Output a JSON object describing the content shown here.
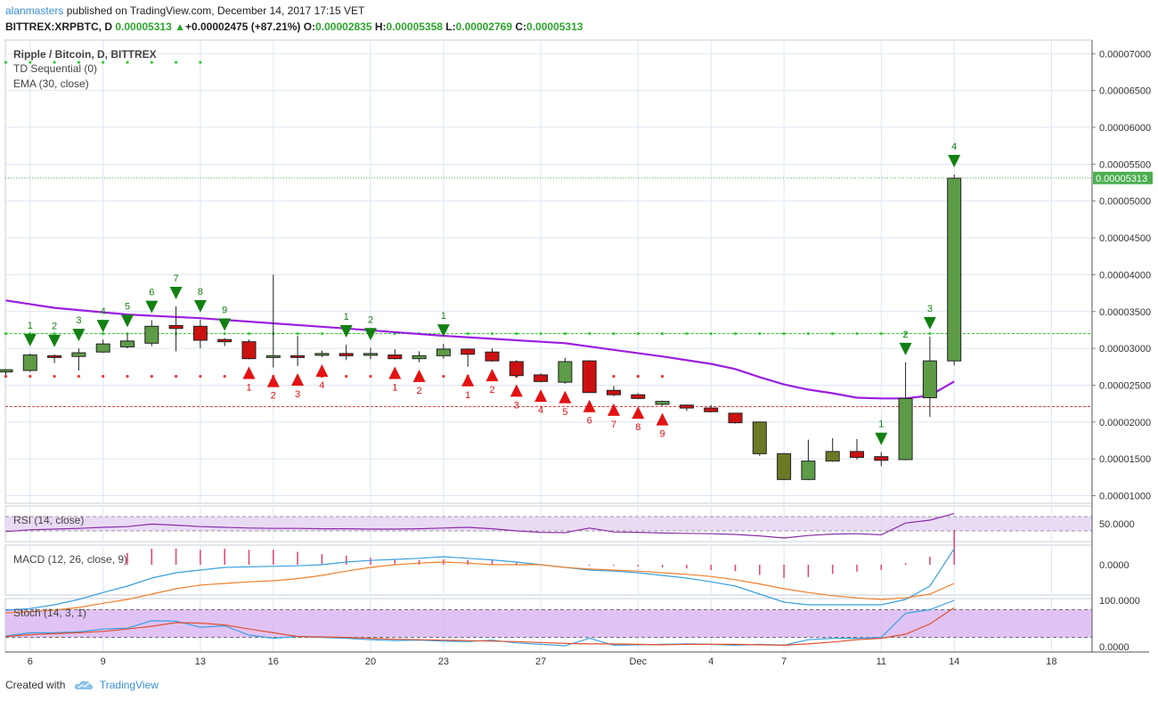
{
  "header": {
    "author": "alanmasters",
    "published_text": "published on TradingView.com, December 14, 2017 17:15 VET",
    "symbol": "BITTREX:XRPBTC, D",
    "last_price": "0.00005313",
    "change_arrow": "▲",
    "change": "+0.00002475 (+87.21%)",
    "o_label": "O:",
    "o_value": "0.00002835",
    "h_label": "H:",
    "h_value": "0.00005358",
    "l_label": "L:",
    "l_value": "0.00002769",
    "c_label": "C:",
    "c_value": "0.00005313"
  },
  "legends": {
    "main_title": "Ripple / Bitcoin, D, BITTREX",
    "td": "TD Sequential (0)",
    "ema": "EMA (30, close)",
    "rsi": "RSI (14, close)",
    "macd": "MACD (12, 26, close, 9)",
    "stoch": "Stoch (14, 3, 1)"
  },
  "footer": {
    "created_with": "Created with",
    "brand": "TradingView"
  },
  "colors": {
    "up": "#5d9b47",
    "down": "#cc1111",
    "olive": "#6b7a25",
    "ema": "#9b1fe0",
    "td_buy": "#138013",
    "td_sell": "#e31313",
    "grid": "#dbe6f3",
    "rsi_band": "#e5d2f2",
    "stoch_band": "#d8b4f1",
    "macd_line": "#3aa0e0",
    "signal_line": "#f07f2a",
    "price_tag": "#4caf50"
  },
  "chart_data": {
    "type": "candlestick",
    "title": "Ripple / Bitcoin, D, BITTREX",
    "x_tick_labels": [
      {
        "i": 1,
        "label": "6"
      },
      {
        "i": 4,
        "label": "9"
      },
      {
        "i": 8,
        "label": "13"
      },
      {
        "i": 11,
        "label": "16"
      },
      {
        "i": 15,
        "label": "20"
      },
      {
        "i": 18,
        "label": "23"
      },
      {
        "i": 22,
        "label": "27"
      },
      {
        "i": 26,
        "label": "Dec"
      },
      {
        "i": 29,
        "label": "4"
      },
      {
        "i": 32,
        "label": "7"
      },
      {
        "i": 36,
        "label": "11"
      },
      {
        "i": 39,
        "label": "14"
      },
      {
        "i": 43,
        "label": "18"
      }
    ],
    "y_axis": {
      "ylim": [
        8.6e-06,
        7.2e-06
      ],
      "tick_labels": [
        "0.00007000",
        "0.00006500",
        "0.00006000",
        "0.00005500",
        "0.00005000",
        "0.00004500",
        "0.00004000",
        "0.00003500",
        "0.00003000",
        "0.00002500",
        "0.00002000",
        "0.00001500",
        "0.00001000"
      ],
      "tick_values": [
        7e-05,
        6.5e-05,
        6e-05,
        5.5e-05,
        5e-05,
        4.5e-05,
        4e-05,
        3.5e-05,
        3e-05,
        2.5e-05,
        2e-05,
        1.5e-05,
        1e-05
      ]
    },
    "last_price_tag": "0.00005313",
    "last_price_value": 5.313e-05,
    "candles": [
      {
        "i": 0,
        "o": 2.68e-05,
        "h": 2.72e-05,
        "l": 2.64e-05,
        "c": 2.71e-05,
        "col": "up"
      },
      {
        "i": 1,
        "o": 2.7e-05,
        "h": 2.93e-05,
        "l": 2.68e-05,
        "c": 2.91e-05,
        "col": "up"
      },
      {
        "i": 2,
        "o": 2.9e-05,
        "h": 2.92e-05,
        "l": 2.8e-05,
        "c": 2.89e-05,
        "col": "down"
      },
      {
        "i": 3,
        "o": 2.89e-05,
        "h": 3e-05,
        "l": 2.7e-05,
        "c": 2.94e-05,
        "col": "up"
      },
      {
        "i": 4,
        "o": 2.95e-05,
        "h": 3.12e-05,
        "l": 2.94e-05,
        "c": 3.06e-05,
        "col": "up"
      },
      {
        "i": 5,
        "o": 3.02e-05,
        "h": 3.19e-05,
        "l": 3e-05,
        "c": 3.1e-05,
        "col": "up"
      },
      {
        "i": 6,
        "o": 3.07e-05,
        "h": 3.38e-05,
        "l": 3.03e-05,
        "c": 3.3e-05,
        "col": "up"
      },
      {
        "i": 7,
        "o": 3.31e-05,
        "h": 3.57e-05,
        "l": 2.96e-05,
        "c": 3.27e-05,
        "col": "down"
      },
      {
        "i": 8,
        "o": 3.3e-05,
        "h": 3.39e-05,
        "l": 3e-05,
        "c": 3.11e-05,
        "col": "down"
      },
      {
        "i": 9,
        "o": 3.12e-05,
        "h": 3.14e-05,
        "l": 3.03e-05,
        "c": 3.09e-05,
        "col": "down"
      },
      {
        "i": 10,
        "o": 3.09e-05,
        "h": 3.12e-05,
        "l": 2.85e-05,
        "c": 2.86e-05,
        "col": "down"
      },
      {
        "i": 11,
        "o": 2.88e-05,
        "h": 4e-05,
        "l": 2.74e-05,
        "c": 2.9e-05,
        "col": "up"
      },
      {
        "i": 12,
        "o": 2.89e-05,
        "h": 3.17e-05,
        "l": 2.76e-05,
        "c": 2.9e-05,
        "col": "down"
      },
      {
        "i": 13,
        "o": 2.91e-05,
        "h": 2.97e-05,
        "l": 2.88e-05,
        "c": 2.93e-05,
        "col": "up"
      },
      {
        "i": 14,
        "o": 2.93e-05,
        "h": 3.05e-05,
        "l": 2.84e-05,
        "c": 2.9e-05,
        "col": "down"
      },
      {
        "i": 15,
        "o": 2.91e-05,
        "h": 3.01e-05,
        "l": 2.85e-05,
        "c": 2.93e-05,
        "col": "up"
      },
      {
        "i": 16,
        "o": 2.91e-05,
        "h": 2.99e-05,
        "l": 2.85e-05,
        "c": 2.86e-05,
        "col": "down"
      },
      {
        "i": 17,
        "o": 2.86e-05,
        "h": 2.96e-05,
        "l": 2.81e-05,
        "c": 2.9e-05,
        "col": "up"
      },
      {
        "i": 18,
        "o": 2.9e-05,
        "h": 3.06e-05,
        "l": 2.86e-05,
        "c": 2.99e-05,
        "col": "up"
      },
      {
        "i": 19,
        "o": 2.99e-05,
        "h": 3e-05,
        "l": 2.75e-05,
        "c": 2.92e-05,
        "col": "down"
      },
      {
        "i": 20,
        "o": 2.95e-05,
        "h": 3e-05,
        "l": 2.82e-05,
        "c": 2.83e-05,
        "col": "down"
      },
      {
        "i": 21,
        "o": 2.82e-05,
        "h": 2.84e-05,
        "l": 2.61e-05,
        "c": 2.63e-05,
        "col": "down"
      },
      {
        "i": 22,
        "o": 2.64e-05,
        "h": 2.66e-05,
        "l": 2.54e-05,
        "c": 2.55e-05,
        "col": "down"
      },
      {
        "i": 23,
        "o": 2.54e-05,
        "h": 2.87e-05,
        "l": 2.52e-05,
        "c": 2.82e-05,
        "col": "up"
      },
      {
        "i": 24,
        "o": 2.83e-05,
        "h": 2.84e-05,
        "l": 2.4e-05,
        "c": 2.4e-05,
        "col": "down"
      },
      {
        "i": 25,
        "o": 2.43e-05,
        "h": 2.49e-05,
        "l": 2.35e-05,
        "c": 2.37e-05,
        "col": "down"
      },
      {
        "i": 26,
        "o": 2.37e-05,
        "h": 2.39e-05,
        "l": 2.31e-05,
        "c": 2.32e-05,
        "col": "down"
      },
      {
        "i": 27,
        "o": 2.24e-05,
        "h": 2.29e-05,
        "l": 2.22e-05,
        "c": 2.28e-05,
        "col": "up"
      },
      {
        "i": 28,
        "o": 2.23e-05,
        "h": 2.24e-05,
        "l": 2.15e-05,
        "c": 2.19e-05,
        "col": "down"
      },
      {
        "i": 29,
        "o": 2.19e-05,
        "h": 2.23e-05,
        "l": 2.13e-05,
        "c": 2.14e-05,
        "col": "down"
      },
      {
        "i": 30,
        "o": 2.12e-05,
        "h": 2.12e-05,
        "l": 1.98e-05,
        "c": 1.99e-05,
        "col": "down"
      },
      {
        "i": 31,
        "o": 2e-05,
        "h": 2e-05,
        "l": 1.54e-05,
        "c": 1.57e-05,
        "col": "olive"
      },
      {
        "i": 32,
        "o": 1.57e-05,
        "h": 1.58e-05,
        "l": 1.21e-05,
        "c": 1.22e-05,
        "col": "olive"
      },
      {
        "i": 33,
        "o": 1.22e-05,
        "h": 1.76e-05,
        "l": 1.21e-05,
        "c": 1.47e-05,
        "col": "up"
      },
      {
        "i": 34,
        "o": 1.47e-05,
        "h": 1.78e-05,
        "l": 1.46e-05,
        "c": 1.6e-05,
        "col": "olive"
      },
      {
        "i": 35,
        "o": 1.6e-05,
        "h": 1.77e-05,
        "l": 1.49e-05,
        "c": 1.52e-05,
        "col": "down"
      },
      {
        "i": 36,
        "o": 1.53e-05,
        "h": 1.59e-05,
        "l": 1.4e-05,
        "c": 1.48e-05,
        "col": "down"
      },
      {
        "i": 37,
        "o": 1.49e-05,
        "h": 2.81e-05,
        "l": 1.48e-05,
        "c": 2.32e-05,
        "col": "up"
      },
      {
        "i": 38,
        "o": 2.33e-05,
        "h": 3.16e-05,
        "l": 2.07e-05,
        "c": 2.83e-05,
        "col": "up"
      },
      {
        "i": 39,
        "o": 2.83e-05,
        "h": 5.36e-05,
        "l": 2.77e-05,
        "c": 5.31e-05,
        "col": "up"
      }
    ],
    "ema": [
      {
        "i": 0,
        "v": 3.65e-05
      },
      {
        "i": 2,
        "v": 3.55e-05
      },
      {
        "i": 5,
        "v": 3.46e-05
      },
      {
        "i": 8,
        "v": 3.41e-05
      },
      {
        "i": 11,
        "v": 3.34e-05
      },
      {
        "i": 14,
        "v": 3.27e-05
      },
      {
        "i": 18,
        "v": 3.17e-05
      },
      {
        "i": 21,
        "v": 3.11e-05
      },
      {
        "i": 23,
        "v": 3.07e-05
      },
      {
        "i": 25,
        "v": 2.98e-05
      },
      {
        "i": 27,
        "v": 2.89e-05
      },
      {
        "i": 29,
        "v": 2.79e-05
      },
      {
        "i": 30,
        "v": 2.72e-05
      },
      {
        "i": 31,
        "v": 2.61e-05
      },
      {
        "i": 32,
        "v": 2.51e-05
      },
      {
        "i": 33,
        "v": 2.44e-05
      },
      {
        "i": 34,
        "v": 2.39e-05
      },
      {
        "i": 35,
        "v": 2.33e-05
      },
      {
        "i": 36,
        "v": 2.32e-05
      },
      {
        "i": 37,
        "v": 2.32e-05
      },
      {
        "i": 38,
        "v": 2.36e-05
      },
      {
        "i": 39,
        "v": 2.55e-05
      }
    ],
    "levels": {
      "green": 3.2e-05,
      "red": 2.21e-05
    },
    "td_buy": [
      {
        "i": 1,
        "n": "1"
      },
      {
        "i": 2,
        "n": "2"
      },
      {
        "i": 3,
        "n": "3"
      },
      {
        "i": 4,
        "n": "4"
      },
      {
        "i": 5,
        "n": "5"
      },
      {
        "i": 6,
        "n": "6"
      },
      {
        "i": 7,
        "n": "7"
      },
      {
        "i": 8,
        "n": "8"
      },
      {
        "i": 9,
        "n": "9"
      },
      {
        "i": 14,
        "n": "1"
      },
      {
        "i": 15,
        "n": "2"
      },
      {
        "i": 18,
        "n": "1"
      },
      {
        "i": 36,
        "n": "1"
      },
      {
        "i": 37,
        "n": "2"
      },
      {
        "i": 38,
        "n": "3"
      },
      {
        "i": 39,
        "n": "4"
      }
    ],
    "td_sell": [
      {
        "i": 10,
        "n": "1"
      },
      {
        "i": 11,
        "n": "2"
      },
      {
        "i": 12,
        "n": "3"
      },
      {
        "i": 13,
        "n": "4"
      },
      {
        "i": 16,
        "n": "1"
      },
      {
        "i": 17,
        "n": "2"
      },
      {
        "i": 19,
        "n": "1"
      },
      {
        "i": 20,
        "n": "2"
      },
      {
        "i": 21,
        "n": "3"
      },
      {
        "i": 22,
        "n": "4"
      },
      {
        "i": 23,
        "n": "5"
      },
      {
        "i": 24,
        "n": "6"
      },
      {
        "i": 25,
        "n": "7"
      },
      {
        "i": 26,
        "n": "8"
      },
      {
        "i": 27,
        "n": "9"
      }
    ],
    "rsi": {
      "tick_label": "50.0000",
      "values": [
        28,
        33,
        35,
        37,
        40,
        42,
        49,
        46,
        42,
        40,
        38,
        37,
        37,
        36,
        36,
        35,
        35,
        36,
        38,
        40,
        36,
        30,
        26,
        25,
        38,
        27,
        26,
        24,
        23,
        22,
        20,
        16,
        10,
        17,
        21,
        22,
        19,
        52,
        60,
        79
      ]
    },
    "macd": {
      "tick_label": "0.0000",
      "macd": [
        -8.5e-07,
        -8.2e-07,
        -7.5e-07,
        -6.5e-07,
        -5.2e-07,
        -4e-07,
        -2.5e-07,
        -1.5e-07,
        -1e-07,
        -5e-08,
        -4e-08,
        -3e-08,
        -2e-08,
        0.0,
        5e-08,
        8e-08,
        1e-07,
        1.2e-07,
        1.5e-07,
        1.2e-07,
        9e-08,
        5e-08,
        0.0,
        -5e-08,
        -1e-07,
        -1.2e-07,
        -1.5e-07,
        -2e-07,
        -2.5e-07,
        -3.2e-07,
        -4e-07,
        -5.5e-07,
        -7e-07,
        -7.5e-07,
        -7.5e-07,
        -7.5e-07,
        -7.5e-07,
        -6.5e-07,
        -4e-07,
        3e-07
      ],
      "signal": [
        -9e-07,
        -8.8e-07,
        -8.5e-07,
        -8e-07,
        -7.2e-07,
        -6.5e-07,
        -5.5e-07,
        -4.5e-07,
        -3.8e-07,
        -3.5e-07,
        -3.2e-07,
        -3e-07,
        -2.6e-07,
        -2e-07,
        -1.2e-07,
        -5e-08,
        0.0,
        3e-08,
        5e-08,
        3e-08,
        0.0,
        0.0,
        0.0,
        -5e-08,
        -8e-08,
        -1e-07,
        -1.2e-07,
        -1.5e-07,
        -1.8e-07,
        -2.2e-07,
        -2.8e-07,
        -3.6e-07,
        -4.5e-07,
        -5.2e-07,
        -5.8e-07,
        -6.2e-07,
        -6.5e-07,
        -6.2e-07,
        -5.5e-07,
        -3.5e-07
      ],
      "histogram": [
        0,
        0,
        0,
        0,
        0,
        2.2e-07,
        3e-07,
        3e-07,
        2.8e-07,
        3e-07,
        2.8e-07,
        2.8e-07,
        2.4e-07,
        2e-07,
        1.7e-07,
        1.3e-07,
        1e-07,
        9e-08,
        1e-07,
        9e-08,
        9e-08,
        5e-08,
        0.0,
        0.0,
        -2e-08,
        -2e-08,
        -3e-08,
        -5e-08,
        -7e-08,
        -1e-07,
        -1.2e-07,
        -1.9e-07,
        -2.5e-07,
        -2.3e-07,
        -1.7e-07,
        -1.3e-07,
        -1e-07,
        3e-08,
        1.5e-07,
        6.5e-07
      ]
    },
    "stoch": {
      "tick_labels": [
        "100.0000",
        "0.0000"
      ],
      "k": [
        23,
        30,
        30,
        32,
        38,
        40,
        56,
        55,
        42,
        45,
        25,
        18,
        22,
        20,
        18,
        15,
        13,
        14,
        12,
        11,
        14,
        8,
        5,
        2,
        18,
        3,
        4,
        5,
        6,
        5,
        3,
        5,
        3,
        15,
        18,
        18,
        20,
        72,
        80,
        100
      ],
      "d": [
        22,
        26,
        28,
        30,
        33,
        38,
        44,
        52,
        51,
        47,
        38,
        30,
        22,
        21,
        20,
        18,
        16,
        15,
        14,
        13,
        12,
        11,
        9,
        7,
        6,
        6,
        5,
        4,
        5,
        5,
        5,
        4,
        3,
        6,
        10,
        15,
        18,
        27,
        49,
        84
      ]
    }
  }
}
